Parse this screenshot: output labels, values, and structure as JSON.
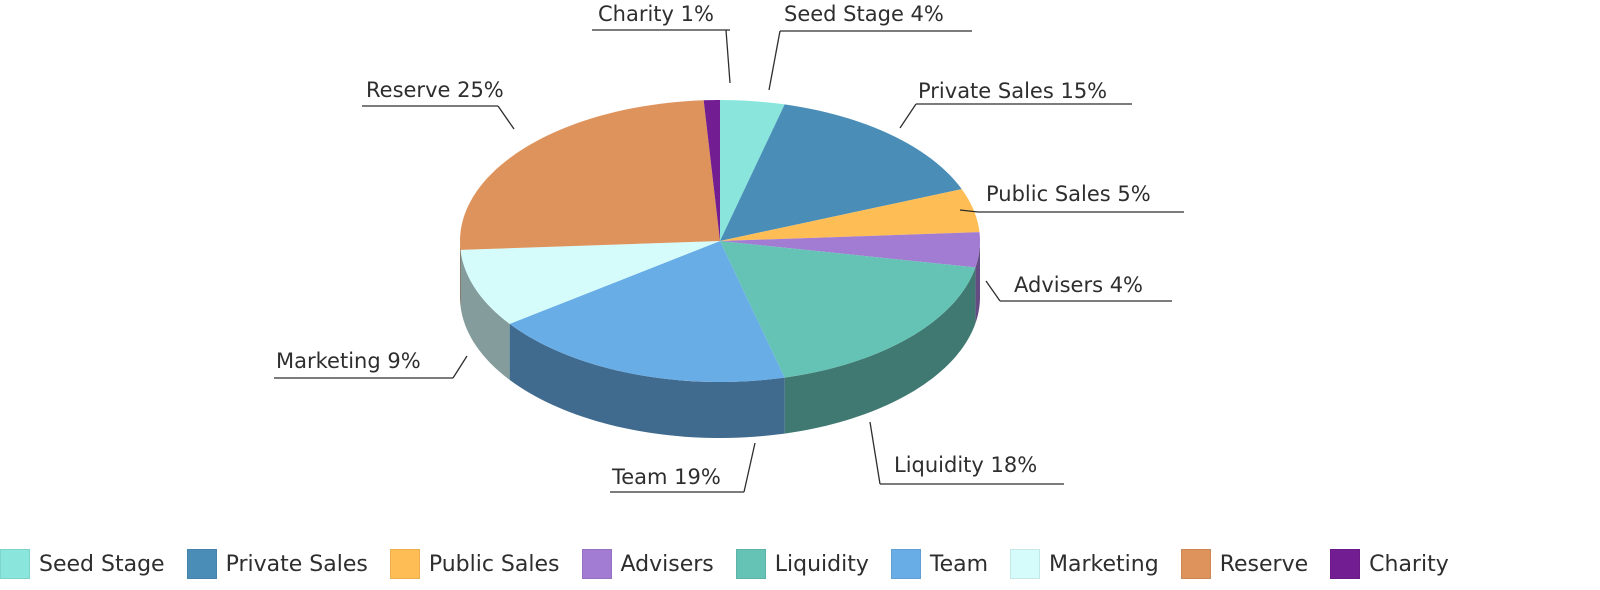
{
  "chart_data": {
    "type": "pie",
    "style": "3d",
    "legend_position": "bottom",
    "slices": [
      {
        "name": "Seed Stage",
        "value": 4,
        "label": "Seed Stage 4%",
        "color": "#8ae6dc"
      },
      {
        "name": "Private Sales",
        "value": 15,
        "label": "Private Sales 15%",
        "color": "#4a8eb8"
      },
      {
        "name": "Public Sales",
        "value": 5,
        "label": "Public Sales 5%",
        "color": "#ffbe55"
      },
      {
        "name": "Advisers",
        "value": 4,
        "label": "Advisers 4%",
        "color": "#a27bd3"
      },
      {
        "name": "Liquidity",
        "value": 18,
        "label": "Liquidity 18%",
        "color": "#65c3b6"
      },
      {
        "name": "Team",
        "value": 19,
        "label": "Team 19%",
        "color": "#68ade6"
      },
      {
        "name": "Marketing",
        "value": 9,
        "label": "Marketing 9%",
        "color": "#d5fcfb"
      },
      {
        "name": "Reserve",
        "value": 25,
        "label": "Reserve 25%",
        "color": "#df935c"
      },
      {
        "name": "Charity",
        "value": 1,
        "label": "Charity 1%",
        "color": "#721d92"
      }
    ]
  }
}
